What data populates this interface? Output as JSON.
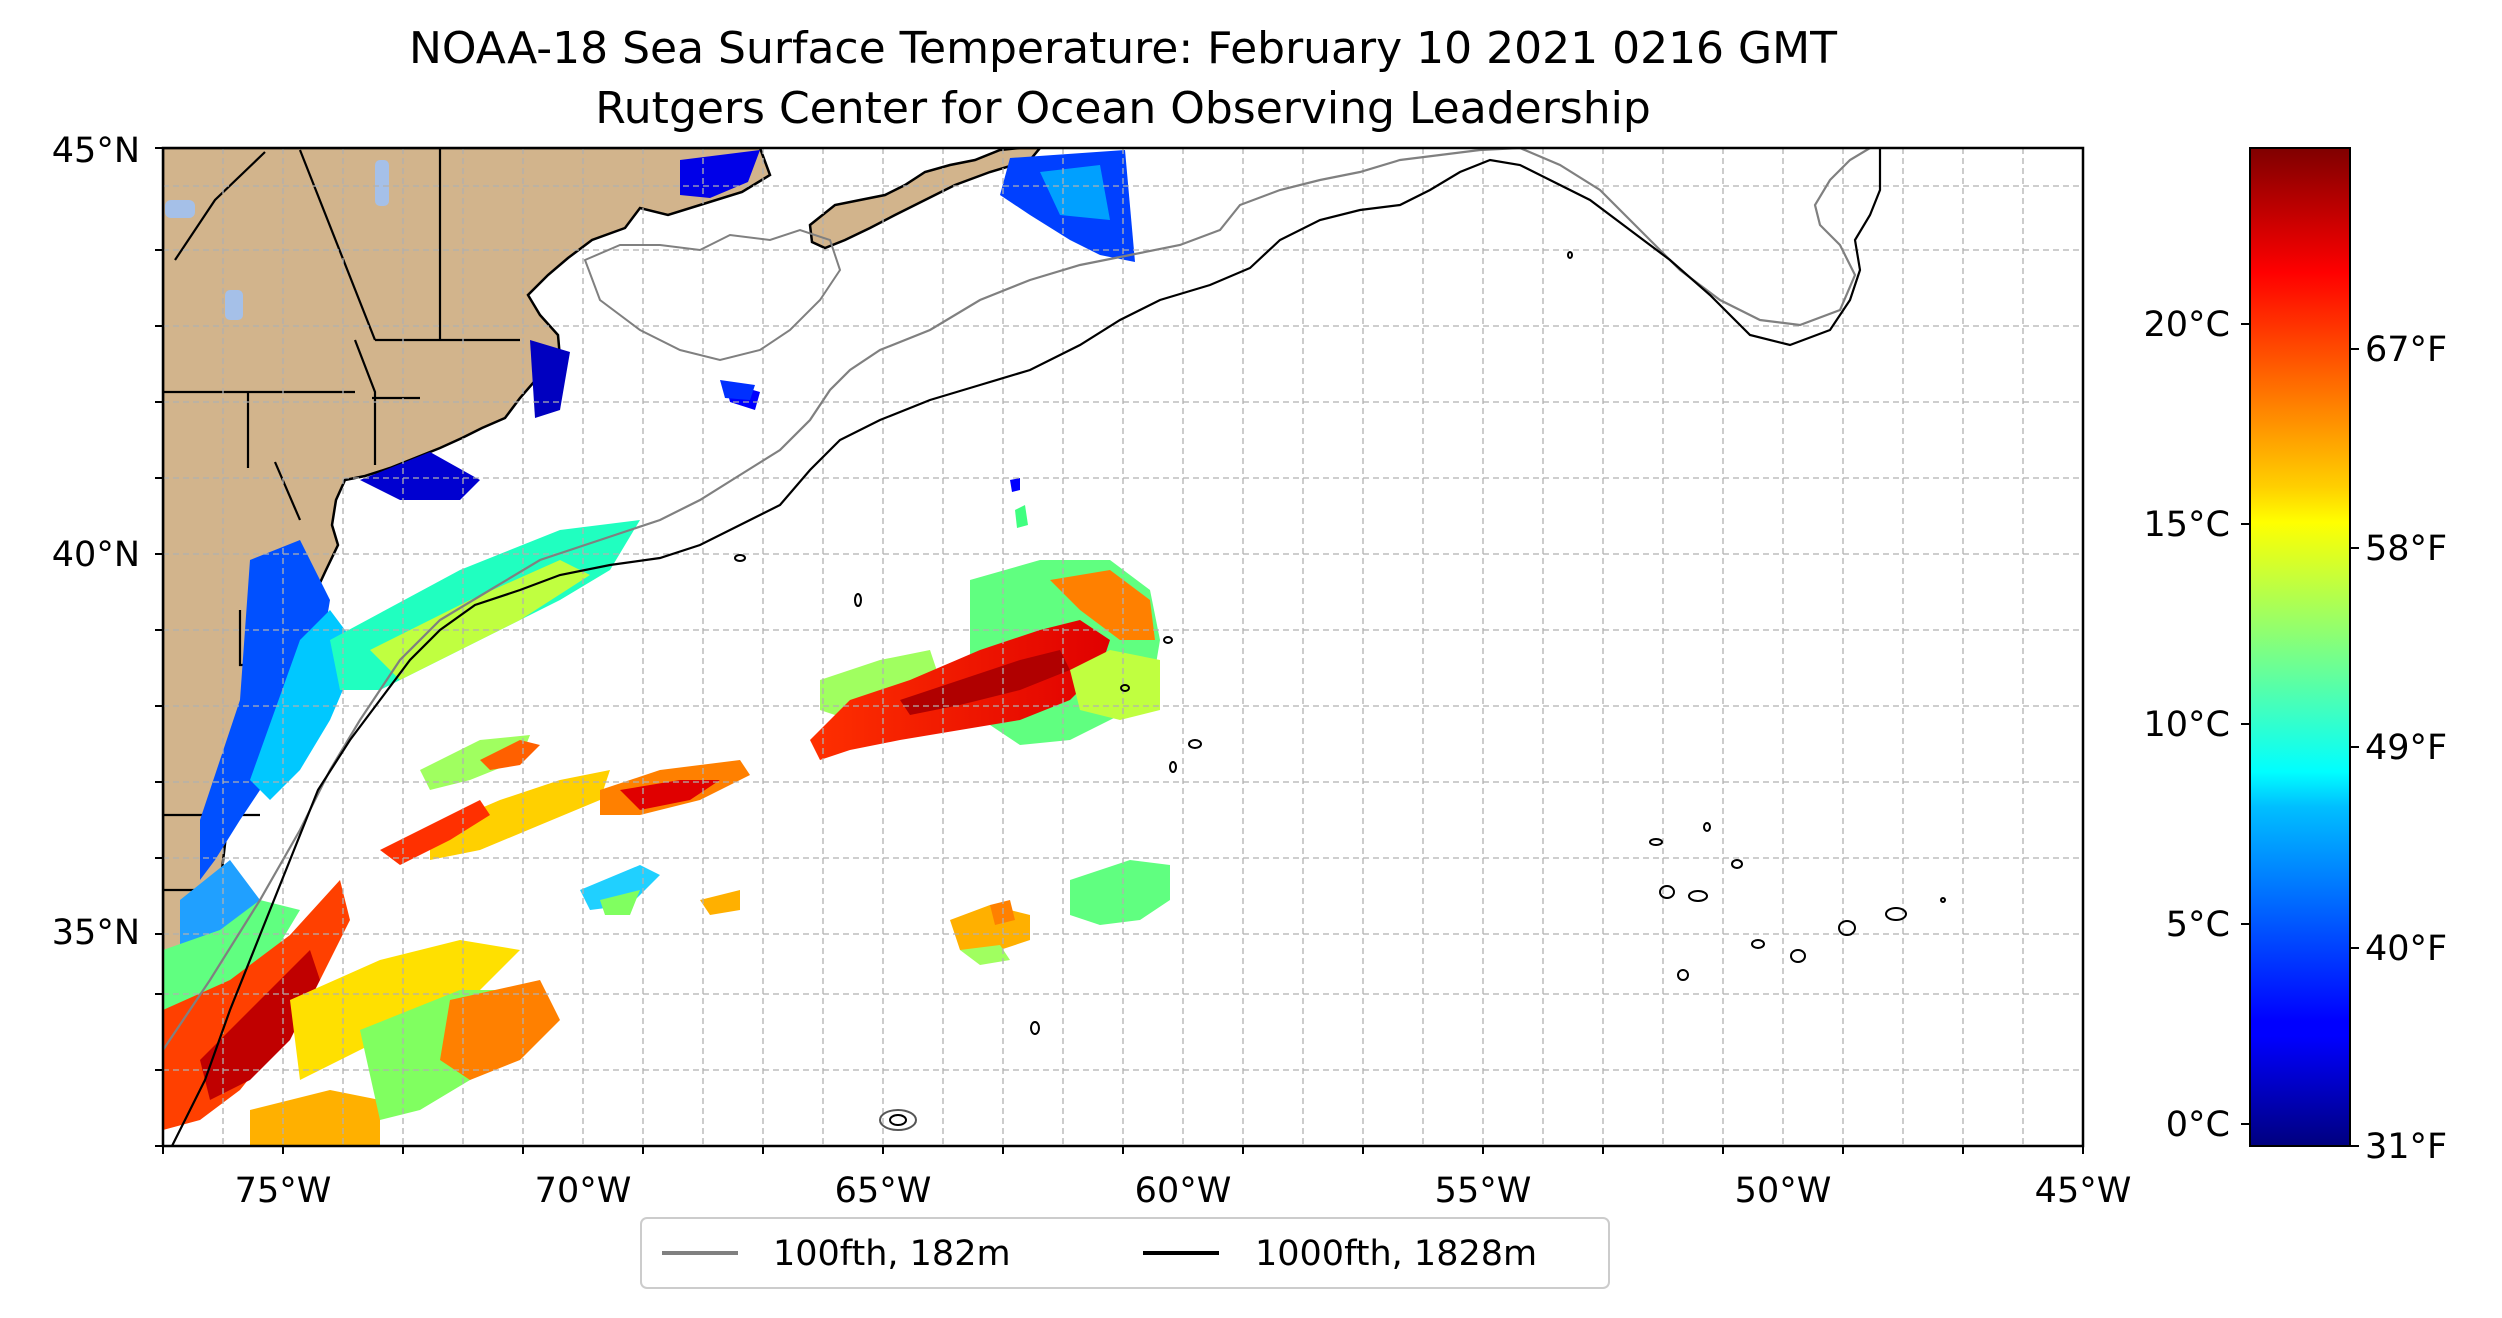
{
  "title": "NOAA-18 Sea Surface Temperature: February 10 2021 0216 GMT",
  "subtitle": "Rutgers Center for Ocean Observing Leadership",
  "map": {
    "lon_range": [
      -77,
      -45
    ],
    "lat_range": [
      32.5,
      45
    ],
    "lon_ticks": [
      "75°W",
      "70°W",
      "65°W",
      "60°W",
      "55°W",
      "50°W",
      "45°W"
    ],
    "lat_ticks": [
      "35°N",
      "40°N",
      "45°N"
    ],
    "grid": true,
    "land_color": "#d2b48c",
    "water_body_color": "#a5c0e8"
  },
  "legend": {
    "placement": "bottom-center",
    "items": [
      {
        "label": "100fth, 182m",
        "color": "#808080"
      },
      {
        "label": "1000fth, 1828m",
        "color": "#000000"
      }
    ]
  },
  "colorbar": {
    "colormap": "jet",
    "celsius_ticks": [
      "0°C",
      "5°C",
      "10°C",
      "15°C",
      "20°C"
    ],
    "fahrenheit_ticks": [
      "31°F",
      "40°F",
      "49°F",
      "58°F",
      "67°F"
    ]
  }
}
